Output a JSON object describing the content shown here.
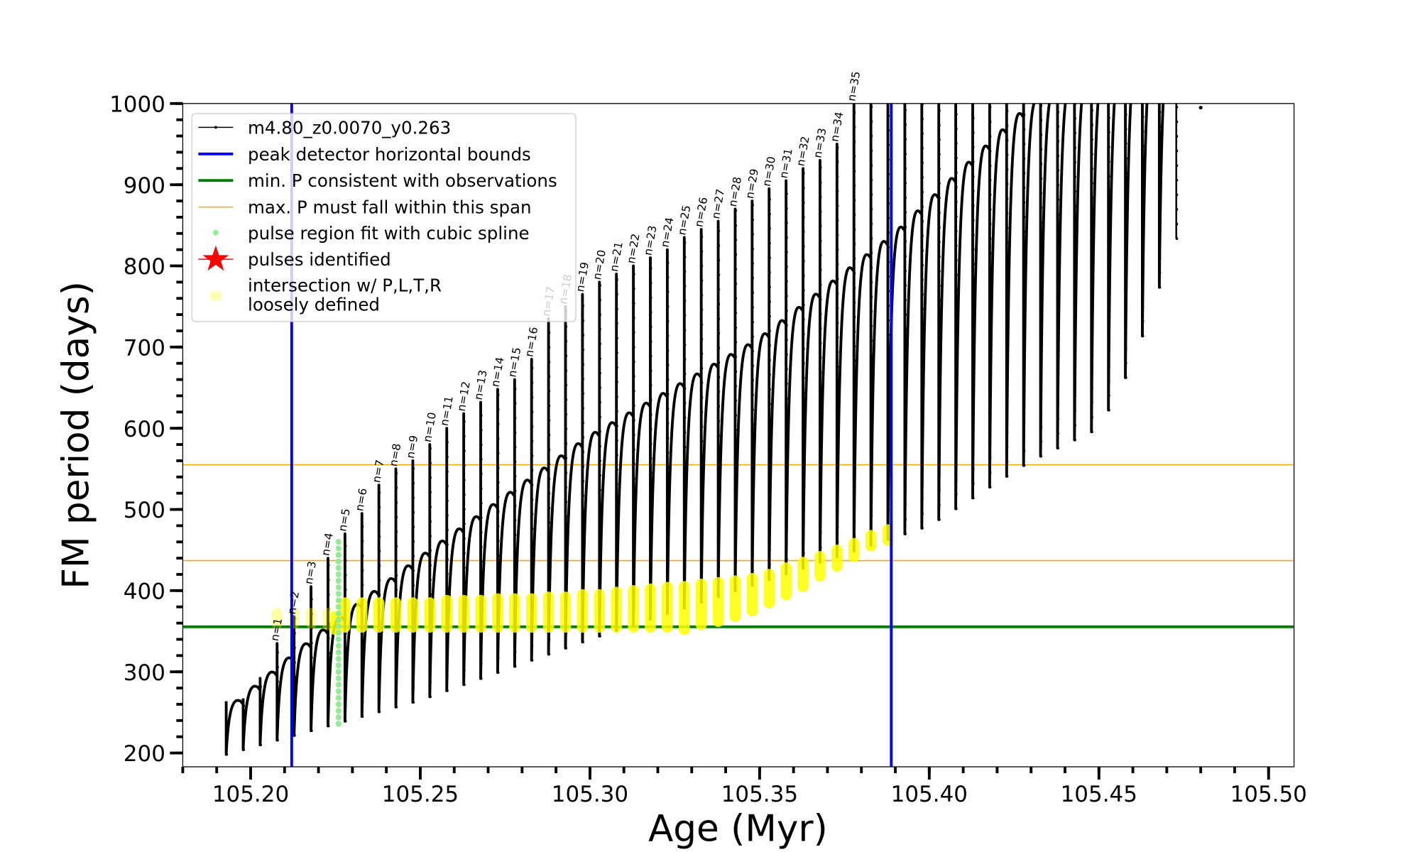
{
  "chart_data": {
    "type": "line",
    "xlabel": "Age (Myr)",
    "ylabel": "FM period (days)",
    "xlim": [
      105.18,
      105.5075
    ],
    "ylim": [
      183,
      1000
    ],
    "xticks": [
      105.2,
      105.25,
      105.3,
      105.35,
      105.4,
      105.45,
      105.5
    ],
    "xtick_labels": [
      "105.20",
      "105.25",
      "105.30",
      "105.35",
      "105.40",
      "105.45",
      "105.50"
    ],
    "yticks": [
      200,
      300,
      400,
      500,
      600,
      700,
      800,
      900,
      1000
    ],
    "ytick_labels": [
      "200",
      "300",
      "400",
      "500",
      "600",
      "700",
      "800",
      "900",
      "1000"
    ],
    "x_minor_step": 0.01,
    "y_minor_step": 20,
    "legend": {
      "placement": "upper-left",
      "entries": [
        {
          "label": "m4.80_z0.0070_y0.263",
          "color": "#000000",
          "kind": "line-marker"
        },
        {
          "label": "peak detector horizontal bounds",
          "color": "#0000ff",
          "kind": "line"
        },
        {
          "label": "min. P consistent with observations",
          "color": "#008000",
          "kind": "line"
        },
        {
          "label": "max. P must fall within this span",
          "color": "#ffa500",
          "kind": "thin-line"
        },
        {
          "label": "pulse region fit with cubic spline",
          "color": "#90ee90",
          "kind": "dot"
        },
        {
          "label": "pulses identified",
          "color": "#ff0000",
          "kind": "star"
        },
        {
          "label": "intersection w/ P,L,T,R",
          "label2": "loosely defined",
          "color": "#ffff99",
          "kind": "circle"
        }
      ]
    },
    "vertical_bounds": [
      105.2121,
      105.3888
    ],
    "min_period": 355.5,
    "max_period_span": [
      437,
      555
    ],
    "track": {
      "first_pulse_age": 105.1928,
      "pulse_spacing": 0.005,
      "pulse_peaks": [
        240,
        265,
        292,
        335,
        368,
        405,
        440,
        470,
        495,
        530,
        550,
        560,
        580,
        600,
        618,
        632,
        648,
        660,
        685,
        735,
        750,
        765,
        780,
        790,
        800,
        810,
        820,
        835,
        845,
        855,
        870,
        880,
        895,
        905,
        920,
        930,
        950,
        1050,
        1050,
        1050,
        1050,
        1050,
        1050,
        1050,
        1050,
        1050,
        1050,
        1050,
        1050,
        1050,
        1050,
        1050,
        1050,
        1050,
        1050,
        1050,
        1050
      ],
      "arc_top_curve": [
        [
          105.19,
          240
        ],
        [
          105.22,
          345
        ],
        [
          105.25,
          440
        ],
        [
          105.3,
          590
        ],
        [
          105.35,
          710
        ],
        [
          105.39,
          840
        ],
        [
          105.43,
          1000
        ],
        [
          105.48,
          1100
        ]
      ],
      "trough_curve": [
        [
          105.19,
          195
        ],
        [
          105.25,
          265
        ],
        [
          105.3,
          340
        ],
        [
          105.35,
          410
        ],
        [
          105.4,
          480
        ],
        [
          105.43,
          560
        ],
        [
          105.45,
          600
        ],
        [
          105.46,
          680
        ],
        [
          105.47,
          800
        ],
        [
          105.48,
          920
        ]
      ],
      "end_age": 105.48,
      "end_period": 995
    },
    "pulse_labels": [
      "n=1",
      "n=2",
      "n=3",
      "n=4",
      "n=5",
      "n=6",
      "n=7",
      "n=8",
      "n=9",
      "n=10",
      "n=11",
      "n=12",
      "n=13",
      "n=14",
      "n=15",
      "n=16",
      "n=17",
      "n=18",
      "n=19",
      "n=20",
      "n=21",
      "n=22",
      "n=23",
      "n=24",
      "n=25",
      "n=26",
      "n=27",
      "n=28",
      "n=29",
      "n=30",
      "n=31",
      "n=32",
      "n=33",
      "n=34",
      "n=35"
    ],
    "spline_points": {
      "age": 105.2259,
      "period_range": [
        236,
        462
      ],
      "step": 8
    },
    "intersections": [
      {
        "age": 105.2078,
        "low": 360,
        "high": 372,
        "faint": true
      },
      {
        "age": 105.2128,
        "low": 360,
        "high": 372,
        "faint": true
      },
      {
        "age": 105.2178,
        "low": 360,
        "high": 372,
        "faint": true
      },
      {
        "age": 105.2228,
        "low": 358,
        "high": 372,
        "faint": true
      },
      {
        "age": 105.225,
        "low": 352,
        "high": 368
      },
      {
        "age": 105.2278,
        "low": 355,
        "high": 385
      },
      {
        "age": 105.2328,
        "low": 355,
        "high": 385
      },
      {
        "age": 105.2378,
        "low": 355,
        "high": 385
      },
      {
        "age": 105.2428,
        "low": 355,
        "high": 385
      },
      {
        "age": 105.2478,
        "low": 355,
        "high": 385
      },
      {
        "age": 105.2528,
        "low": 355,
        "high": 385
      },
      {
        "age": 105.2578,
        "low": 355,
        "high": 388
      },
      {
        "age": 105.2628,
        "low": 355,
        "high": 388
      },
      {
        "age": 105.2678,
        "low": 355,
        "high": 388
      },
      {
        "age": 105.2728,
        "low": 355,
        "high": 390
      },
      {
        "age": 105.2778,
        "low": 355,
        "high": 390
      },
      {
        "age": 105.2828,
        "low": 355,
        "high": 390
      },
      {
        "age": 105.2878,
        "low": 355,
        "high": 392
      },
      {
        "age": 105.2928,
        "low": 355,
        "high": 392
      },
      {
        "age": 105.2978,
        "low": 355,
        "high": 395
      },
      {
        "age": 105.3028,
        "low": 355,
        "high": 395
      },
      {
        "age": 105.3078,
        "low": 355,
        "high": 398
      },
      {
        "age": 105.3128,
        "low": 355,
        "high": 400
      },
      {
        "age": 105.3178,
        "low": 355,
        "high": 402
      },
      {
        "age": 105.3228,
        "low": 355,
        "high": 404
      },
      {
        "age": 105.3278,
        "low": 352,
        "high": 405
      },
      {
        "age": 105.3328,
        "low": 358,
        "high": 408
      },
      {
        "age": 105.3378,
        "low": 362,
        "high": 410
      },
      {
        "age": 105.3428,
        "low": 368,
        "high": 412
      },
      {
        "age": 105.3478,
        "low": 375,
        "high": 415
      },
      {
        "age": 105.3528,
        "low": 385,
        "high": 420
      },
      {
        "age": 105.3578,
        "low": 395,
        "high": 428
      },
      {
        "age": 105.3628,
        "low": 405,
        "high": 435
      },
      {
        "age": 105.3678,
        "low": 418,
        "high": 442
      },
      {
        "age": 105.3728,
        "low": 430,
        "high": 450
      },
      {
        "age": 105.3778,
        "low": 442,
        "high": 458
      },
      {
        "age": 105.3828,
        "low": 455,
        "high": 468
      },
      {
        "age": 105.3878,
        "low": 462,
        "high": 475
      }
    ]
  }
}
